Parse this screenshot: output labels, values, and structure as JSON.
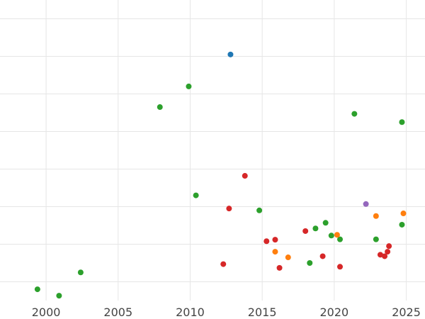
{
  "chart_data": {
    "type": "scatter",
    "xlim": [
      1996.8,
      2026.3
    ],
    "ylim": [
      0,
      8
    ],
    "x_ticks": [
      2000,
      2005,
      2010,
      2015,
      2020,
      2025
    ],
    "x_tick_labels": [
      "2000",
      "2005",
      "2010",
      "2015",
      "2020",
      "2025"
    ],
    "y_gridlines": [
      0.5,
      1.5,
      2.5,
      3.5,
      4.5,
      5.5,
      6.5,
      7.5
    ],
    "y_tick_labels": [],
    "grid": true,
    "colors": {
      "blue": "#1f77b4",
      "orange": "#ff7f0e",
      "green": "#2ca02c",
      "red": "#d62728",
      "purple": "#9467bd"
    },
    "points": [
      {
        "x": 1999.4,
        "y": 0.3,
        "color": "green"
      },
      {
        "x": 2000.9,
        "y": 0.13,
        "color": "green"
      },
      {
        "x": 2002.4,
        "y": 0.75,
        "color": "green"
      },
      {
        "x": 2007.9,
        "y": 5.15,
        "color": "green"
      },
      {
        "x": 2009.9,
        "y": 5.7,
        "color": "green"
      },
      {
        "x": 2010.4,
        "y": 2.8,
        "color": "green"
      },
      {
        "x": 2014.8,
        "y": 2.4,
        "color": "green"
      },
      {
        "x": 2018.3,
        "y": 1.0,
        "color": "green"
      },
      {
        "x": 2018.7,
        "y": 1.92,
        "color": "green"
      },
      {
        "x": 2019.4,
        "y": 2.07,
        "color": "green"
      },
      {
        "x": 2019.8,
        "y": 1.73,
        "color": "green"
      },
      {
        "x": 2020.4,
        "y": 1.63,
        "color": "green"
      },
      {
        "x": 2021.4,
        "y": 4.97,
        "color": "green"
      },
      {
        "x": 2022.9,
        "y": 1.63,
        "color": "green"
      },
      {
        "x": 2024.7,
        "y": 4.75,
        "color": "green"
      },
      {
        "x": 2024.7,
        "y": 2.02,
        "color": "green"
      },
      {
        "x": 2012.8,
        "y": 6.55,
        "color": "blue"
      },
      {
        "x": 2012.3,
        "y": 0.97,
        "color": "red"
      },
      {
        "x": 2012.7,
        "y": 2.45,
        "color": "red"
      },
      {
        "x": 2013.8,
        "y": 3.32,
        "color": "red"
      },
      {
        "x": 2015.3,
        "y": 1.58,
        "color": "red"
      },
      {
        "x": 2015.9,
        "y": 1.62,
        "color": "red"
      },
      {
        "x": 2016.2,
        "y": 0.87,
        "color": "red"
      },
      {
        "x": 2018.0,
        "y": 1.85,
        "color": "red"
      },
      {
        "x": 2019.2,
        "y": 1.18,
        "color": "red"
      },
      {
        "x": 2020.4,
        "y": 0.9,
        "color": "red"
      },
      {
        "x": 2023.2,
        "y": 1.22,
        "color": "red"
      },
      {
        "x": 2023.5,
        "y": 1.18,
        "color": "red"
      },
      {
        "x": 2023.7,
        "y": 1.3,
        "color": "red"
      },
      {
        "x": 2023.8,
        "y": 1.45,
        "color": "red"
      },
      {
        "x": 2015.9,
        "y": 1.3,
        "color": "orange"
      },
      {
        "x": 2016.8,
        "y": 1.15,
        "color": "orange"
      },
      {
        "x": 2020.2,
        "y": 1.75,
        "color": "orange"
      },
      {
        "x": 2022.9,
        "y": 2.25,
        "color": "orange"
      },
      {
        "x": 2024.8,
        "y": 2.32,
        "color": "orange"
      },
      {
        "x": 2022.2,
        "y": 2.57,
        "color": "purple"
      }
    ]
  }
}
